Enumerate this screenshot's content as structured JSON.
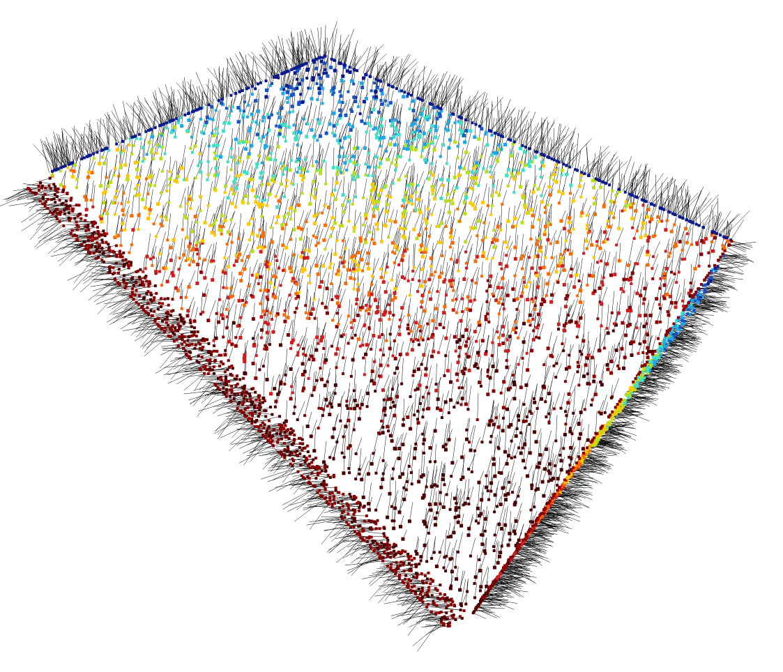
{
  "scene": {
    "background": "#ffffff",
    "normal_line_color": "#000000",
    "colormap": [
      "#4a0000",
      "#8b0000",
      "#d01c1c",
      "#ff6a00",
      "#ffc800",
      "#b8e01a",
      "#3ee0c8",
      "#1fa6e6",
      "#1454c8",
      "#0a1a8c"
    ],
    "colormap_name": "jet"
  }
}
